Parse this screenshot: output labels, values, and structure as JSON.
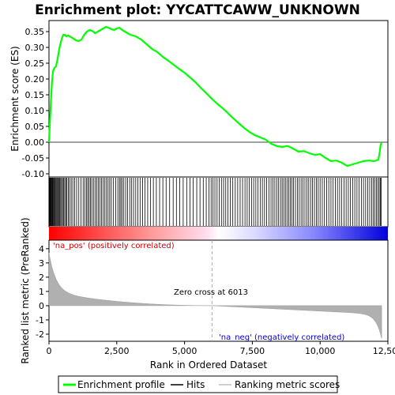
{
  "chart_data": {
    "type": "line",
    "title": "Enrichment plot: YYCATTCAWW_UNKNOWN",
    "xlabel": "Rank in Ordered Dataset",
    "top_ylabel": "Enrichment score (ES)",
    "bottom_ylabel": "Ranked list metric (PreRanked)",
    "xlim": [
      0,
      12500
    ],
    "x_ticks": [
      0,
      2500,
      5000,
      7500,
      10000,
      12500
    ],
    "x_tick_labels": [
      "0",
      "2,500",
      "5,000",
      "7,500",
      "10,000",
      "12,500"
    ],
    "es_ylim": [
      -0.11,
      0.385
    ],
    "es_ticks": [
      -0.1,
      -0.05,
      0.0,
      0.05,
      0.1,
      0.15,
      0.2,
      0.25,
      0.3,
      0.35
    ],
    "es_tick_labels": [
      "-0.10",
      "-0.05",
      "0.00",
      "0.05",
      "0.10",
      "0.15",
      "0.20",
      "0.25",
      "0.30",
      "0.35"
    ],
    "metric_ylim": [
      -2.5,
      4.6
    ],
    "metric_ticks": [
      -2,
      -1,
      0,
      1,
      2,
      3,
      4
    ],
    "metric_tick_labels": [
      "-2",
      "-1",
      "0",
      "1",
      "2",
      "3",
      "4"
    ],
    "n_genes": 12269,
    "zero_cross": 6013,
    "annotations": {
      "pos_label": "'na_pos' (positively correlated)",
      "neg_label": "'na_neg' (negatively correlated)",
      "zero_cross_label": "Zero cross at 6013"
    },
    "series": [
      {
        "name": "Enrichment profile",
        "color": "#00ff00",
        "x": [
          0,
          20,
          50,
          80,
          110,
          150,
          200,
          260,
          320,
          380,
          430,
          480,
          530,
          580,
          640,
          700,
          800,
          900,
          1000,
          1100,
          1200,
          1300,
          1400,
          1500,
          1600,
          1700,
          1800,
          1900,
          2000,
          2100,
          2200,
          2300,
          2400,
          2500,
          2600,
          2700,
          2800,
          2900,
          3000,
          3200,
          3400,
          3600,
          3800,
          4000,
          4200,
          4400,
          4600,
          4800,
          5000,
          5200,
          5400,
          5600,
          5800,
          6000,
          6200,
          6400,
          6600,
          6800,
          7000,
          7200,
          7400,
          7600,
          7800,
          8000,
          8200,
          8400,
          8600,
          8800,
          9000,
          9200,
          9400,
          9600,
          9800,
          10000,
          10200,
          10400,
          10600,
          10800,
          11000,
          11200,
          11400,
          11600,
          11800,
          12000,
          12150,
          12200,
          12230,
          12269
        ],
        "y": [
          0.0,
          0.04,
          0.09,
          0.14,
          0.19,
          0.225,
          0.235,
          0.24,
          0.265,
          0.295,
          0.315,
          0.33,
          0.34,
          0.34,
          0.335,
          0.338,
          0.333,
          0.328,
          0.322,
          0.32,
          0.325,
          0.34,
          0.35,
          0.355,
          0.352,
          0.345,
          0.35,
          0.355,
          0.36,
          0.365,
          0.362,
          0.358,
          0.355,
          0.36,
          0.362,
          0.355,
          0.35,
          0.345,
          0.34,
          0.335,
          0.325,
          0.31,
          0.295,
          0.285,
          0.27,
          0.258,
          0.245,
          0.232,
          0.22,
          0.205,
          0.19,
          0.172,
          0.155,
          0.138,
          0.122,
          0.108,
          0.092,
          0.075,
          0.06,
          0.045,
          0.032,
          0.022,
          0.015,
          0.008,
          -0.005,
          -0.012,
          -0.015,
          -0.012,
          -0.02,
          -0.03,
          -0.028,
          -0.035,
          -0.04,
          -0.038,
          -0.05,
          -0.06,
          -0.058,
          -0.065,
          -0.075,
          -0.07,
          -0.065,
          -0.06,
          -0.058,
          -0.06,
          -0.055,
          -0.03,
          -0.01,
          0.0
        ]
      }
    ],
    "legend": [
      {
        "label": "Enrichment profile",
        "color": "#00ff00"
      },
      {
        "label": "Hits",
        "color": "#000000"
      },
      {
        "label": "Ranking metric scores",
        "color": "#c0c0c0"
      }
    ],
    "hit_ranks": [
      12,
      25,
      40,
      58,
      75,
      95,
      118,
      140,
      165,
      190,
      215,
      240,
      270,
      300,
      330,
      360,
      395,
      430,
      465,
      500,
      540,
      580,
      620,
      660,
      710,
      760,
      820,
      880,
      950,
      1020,
      1100,
      1180,
      1260,
      1320,
      1380,
      1430,
      1480,
      1530,
      1580,
      1640,
      1700,
      1760,
      1820,
      1880,
      1940,
      2000,
      2060,
      2120,
      2180,
      2240,
      2300,
      2380,
      2460,
      2540,
      2600,
      2650,
      2700,
      2760,
      2830,
      2900,
      2980,
      3050,
      3120,
      3200,
      3280,
      3360,
      3450,
      3540,
      3640,
      3740,
      3850,
      3960,
      4080,
      4200,
      4320,
      4450,
      4580,
      4700,
      4820,
      4950,
      5080,
      5200,
      5320,
      5450,
      5570,
      5690,
      5800,
      5900,
      5980,
      6050,
      6120,
      6200,
      6280,
      6360,
      6440,
      6520,
      6600,
      6690,
      6780,
      6870,
      6960,
      7050,
      7140,
      7230,
      7310,
      7390,
      7470,
      7550,
      7630,
      7710,
      7790,
      7870,
      7950,
      8030,
      8110,
      8190,
      8260,
      8330,
      8400,
      8470,
      8540,
      8600,
      8660,
      8720,
      8780,
      8840,
      8900,
      8960,
      9020,
      9090,
      9160,
      9230,
      9300,
      9370,
      9440,
      9510,
      9580,
      9650,
      9720,
      9790,
      9860,
      9930,
      10000,
      10080,
      10160,
      10240,
      10320,
      10400,
      10480,
      10560,
      10640,
      10720,
      10800,
      10880,
      10960,
      11040,
      11120,
      11200,
      11280,
      11360,
      11440,
      11520,
      11600,
      11680,
      11760,
      11830,
      11900,
      11960,
      12020,
      12080,
      12130,
      12180,
      12220,
      12250
    ]
  }
}
